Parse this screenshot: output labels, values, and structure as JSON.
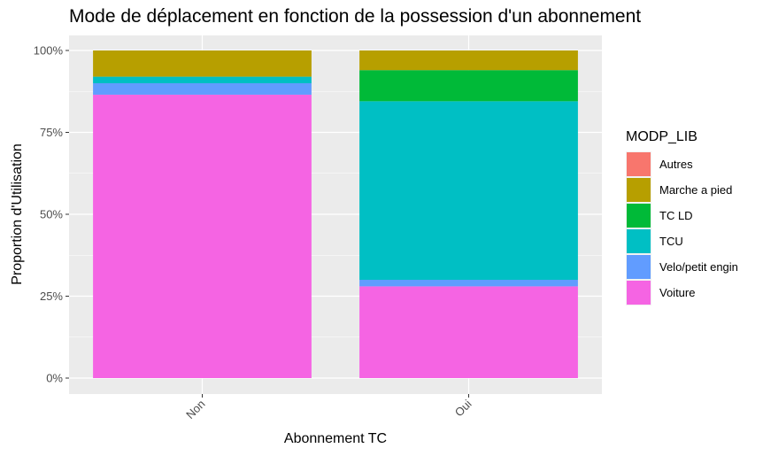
{
  "chart_data": {
    "type": "bar",
    "stacked": true,
    "title": "Mode de déplacement en fonction de la possession d'un abonnement",
    "xlabel": "Abonnement TC",
    "ylabel": "Proportion d'Utilisation",
    "categories": [
      "Non",
      "Oui"
    ],
    "ylim": [
      0,
      1
    ],
    "yticks": [
      "0%",
      "25%",
      "50%",
      "75%",
      "100%"
    ],
    "grid": true,
    "legend": {
      "title": "MODP_LIB",
      "position": "right"
    },
    "series": [
      {
        "name": "Voiture",
        "color": "#F564E3",
        "values": [
          0.865,
          0.28
        ]
      },
      {
        "name": "Velo/petit engin",
        "color": "#619CFF",
        "values": [
          0.035,
          0.02
        ]
      },
      {
        "name": "TCU",
        "color": "#00BFC4",
        "values": [
          0.02,
          0.545
        ]
      },
      {
        "name": "TC LD",
        "color": "#00BA38",
        "values": [
          0.0,
          0.095
        ]
      },
      {
        "name": "Marche a pied",
        "color": "#B79F00",
        "values": [
          0.08,
          0.06
        ]
      },
      {
        "name": "Autres",
        "color": "#F8766D",
        "values": [
          0.0,
          0.0
        ]
      }
    ],
    "legend_order": [
      "Autres",
      "Marche a pied",
      "TC LD",
      "TCU",
      "Velo/petit engin",
      "Voiture"
    ]
  }
}
